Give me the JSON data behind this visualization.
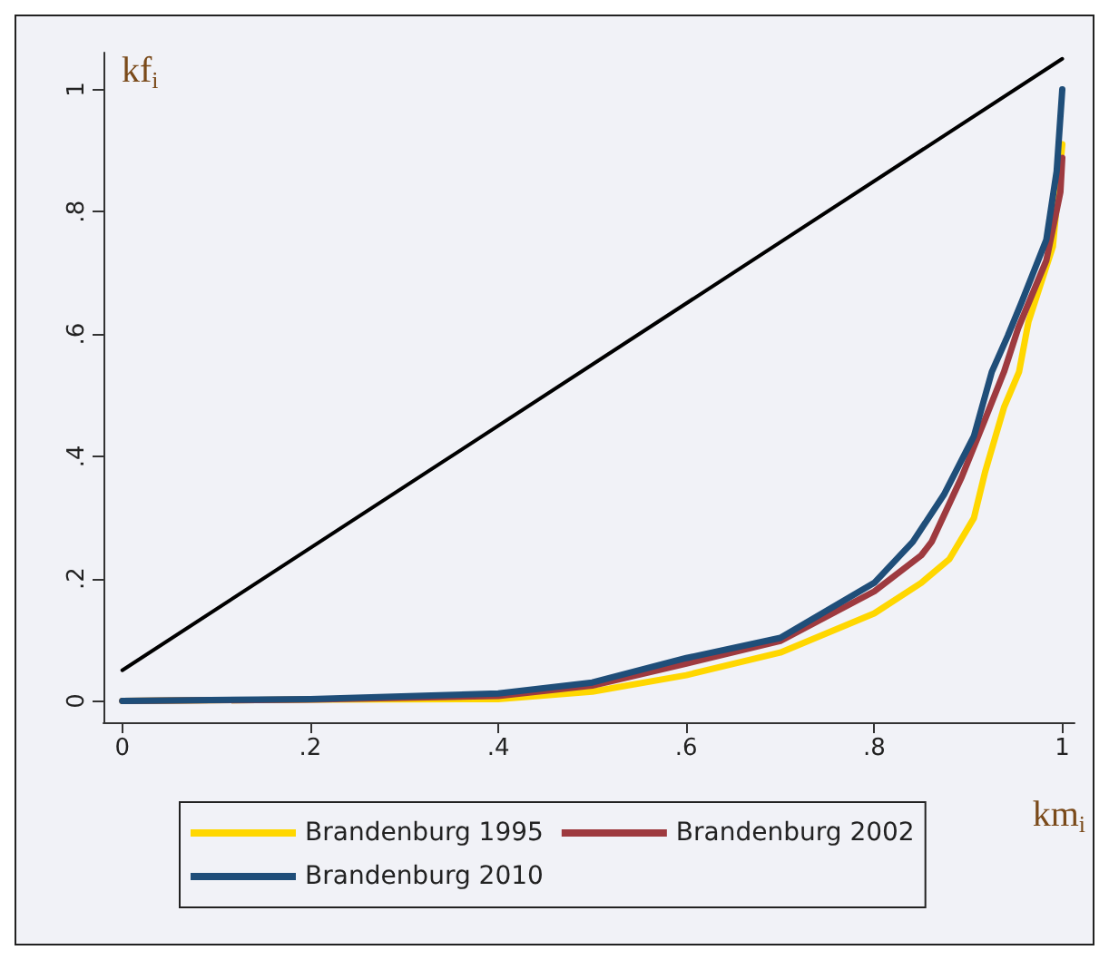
{
  "chart_data": {
    "type": "line",
    "xlabel": "km$_{i}$",
    "ylabel": "kf$_{i}$",
    "xlim": [
      -0.02,
      1.013
    ],
    "ylim": [
      -0.035,
      1.06
    ],
    "xticks": [
      0,
      {
        "value": 0.2,
        "label": ".2"
      },
      {
        "value": 0.4,
        "label": ".4"
      },
      {
        "value": 0.6,
        "label": ".6"
      },
      {
        "value": 0.8,
        "label": ".8"
      },
      1
    ],
    "yticks": [
      0,
      {
        "value": 0.2,
        "label": ".2"
      },
      {
        "value": 0.4,
        "label": ".4"
      },
      {
        "value": 0.6,
        "label": ".6"
      },
      {
        "value": 0.8,
        "label": ".8"
      },
      1
    ],
    "series": [
      {
        "color": "#000000",
        "x": [
          0,
          1
        ],
        "values": [
          0.05,
          1.05
        ]
      },
      {
        "name": "Brandenburg 1995",
        "color": "#ffd700",
        "x": [
          0,
          0.2,
          0.4,
          0.5,
          0.6,
          0.7,
          0.8,
          0.85,
          0.88,
          0.906,
          0.918,
          0.938,
          0.954,
          0.964,
          0.99,
          1
        ],
        "values": [
          0,
          0.002,
          0.003,
          0.015,
          0.042,
          0.079,
          0.143,
          0.193,
          0.232,
          0.299,
          0.375,
          0.48,
          0.538,
          0.62,
          0.743,
          0.91
        ]
      },
      {
        "name": "Brandenburg 2002",
        "color": "#9e3a3f",
        "x": [
          0,
          0.2,
          0.4,
          0.5,
          0.6,
          0.7,
          0.8,
          0.85,
          0.861,
          0.893,
          0.918,
          0.938,
          0.953,
          0.983,
          0.998,
          1
        ],
        "values": [
          0,
          0.002,
          0.008,
          0.025,
          0.061,
          0.098,
          0.179,
          0.238,
          0.26,
          0.366,
          0.461,
          0.538,
          0.609,
          0.72,
          0.832,
          0.888
        ]
      },
      {
        "name": "Brandenburg 2010",
        "color": "#1f4e79",
        "x": [
          0,
          0.2,
          0.4,
          0.5,
          0.6,
          0.7,
          0.8,
          0.841,
          0.874,
          0.906,
          0.925,
          0.942,
          0.957,
          0.983,
          0.994,
          1
        ],
        "values": [
          0,
          0.003,
          0.012,
          0.03,
          0.07,
          0.103,
          0.193,
          0.26,
          0.337,
          0.433,
          0.538,
          0.597,
          0.653,
          0.754,
          0.866,
          1.0
        ]
      }
    ],
    "legend": "bottom",
    "grid": false,
    "marker": "none",
    "line_style": "solid"
  }
}
